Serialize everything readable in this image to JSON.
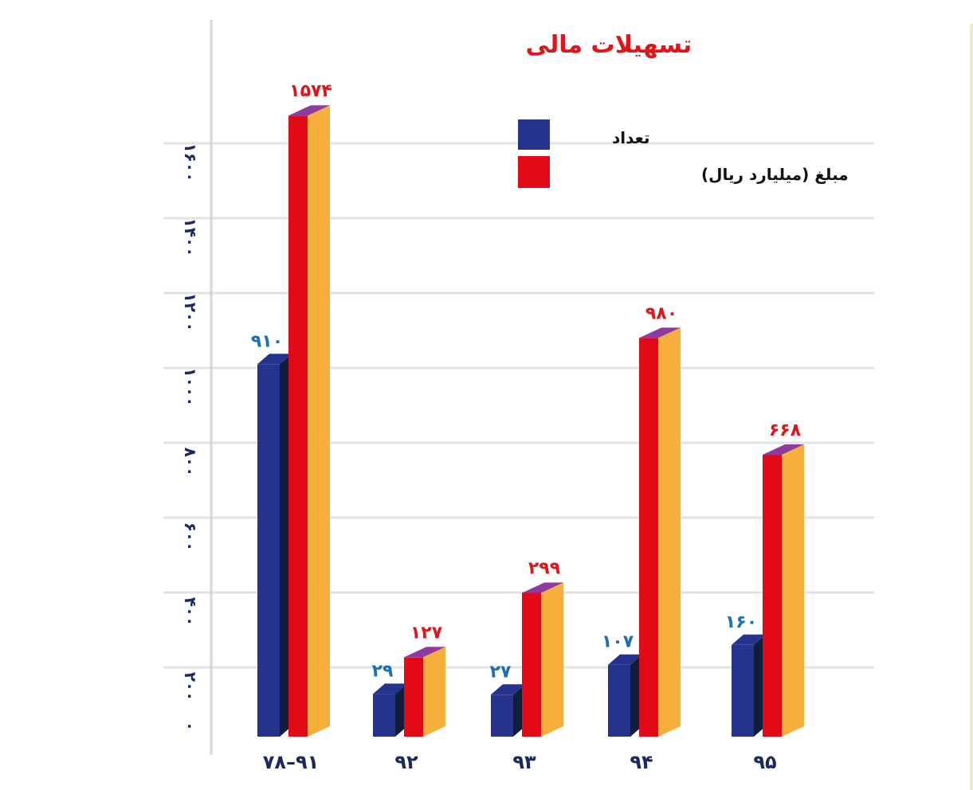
{
  "chart_data": {
    "type": "bar",
    "title": "تسهیلات مالی",
    "categories": [
      "۷۸–۹۱",
      "۹۲",
      "۹۳",
      "۹۴",
      "۹۵"
    ],
    "series": [
      {
        "name": "تعداد",
        "color": "#26338c",
        "values": [
          910,
          29,
          27,
          107,
          160
        ],
        "labels": [
          "۹۱۰",
          "۲۹",
          "۲۷",
          "۱۰۷",
          "۱۶۰"
        ]
      },
      {
        "name": "مبلغ (میلیارد ریال)",
        "color": "#e20a17",
        "values": [
          1574,
          127,
          299,
          980,
          668
        ],
        "labels": [
          "۱۵۷۴",
          "۱۲۷",
          "۲۹۹",
          "۹۸۰",
          "۶۶۸"
        ]
      }
    ],
    "y_ticks": [
      0,
      200,
      400,
      600,
      800,
      1000,
      1200,
      1400,
      1600
    ],
    "y_tick_labels": [
      "۰",
      "۲۰۰",
      "۴۰۰",
      "۶۰۰",
      "۸۰۰",
      "۱۰۰۰",
      "۱۲۰۰",
      "۱۴۰۰",
      "۱۶۰۰"
    ],
    "ylim": [
      0,
      1600
    ],
    "grid": true,
    "legend_position": "top-center",
    "colors": {
      "count_front": "#26338c",
      "count_side": "#0f1e3d",
      "amount_front": "#e20a17",
      "amount_side": "#f6ae3c",
      "amount_top": "#8f3aa0",
      "grid": "#e3e3e3"
    }
  }
}
